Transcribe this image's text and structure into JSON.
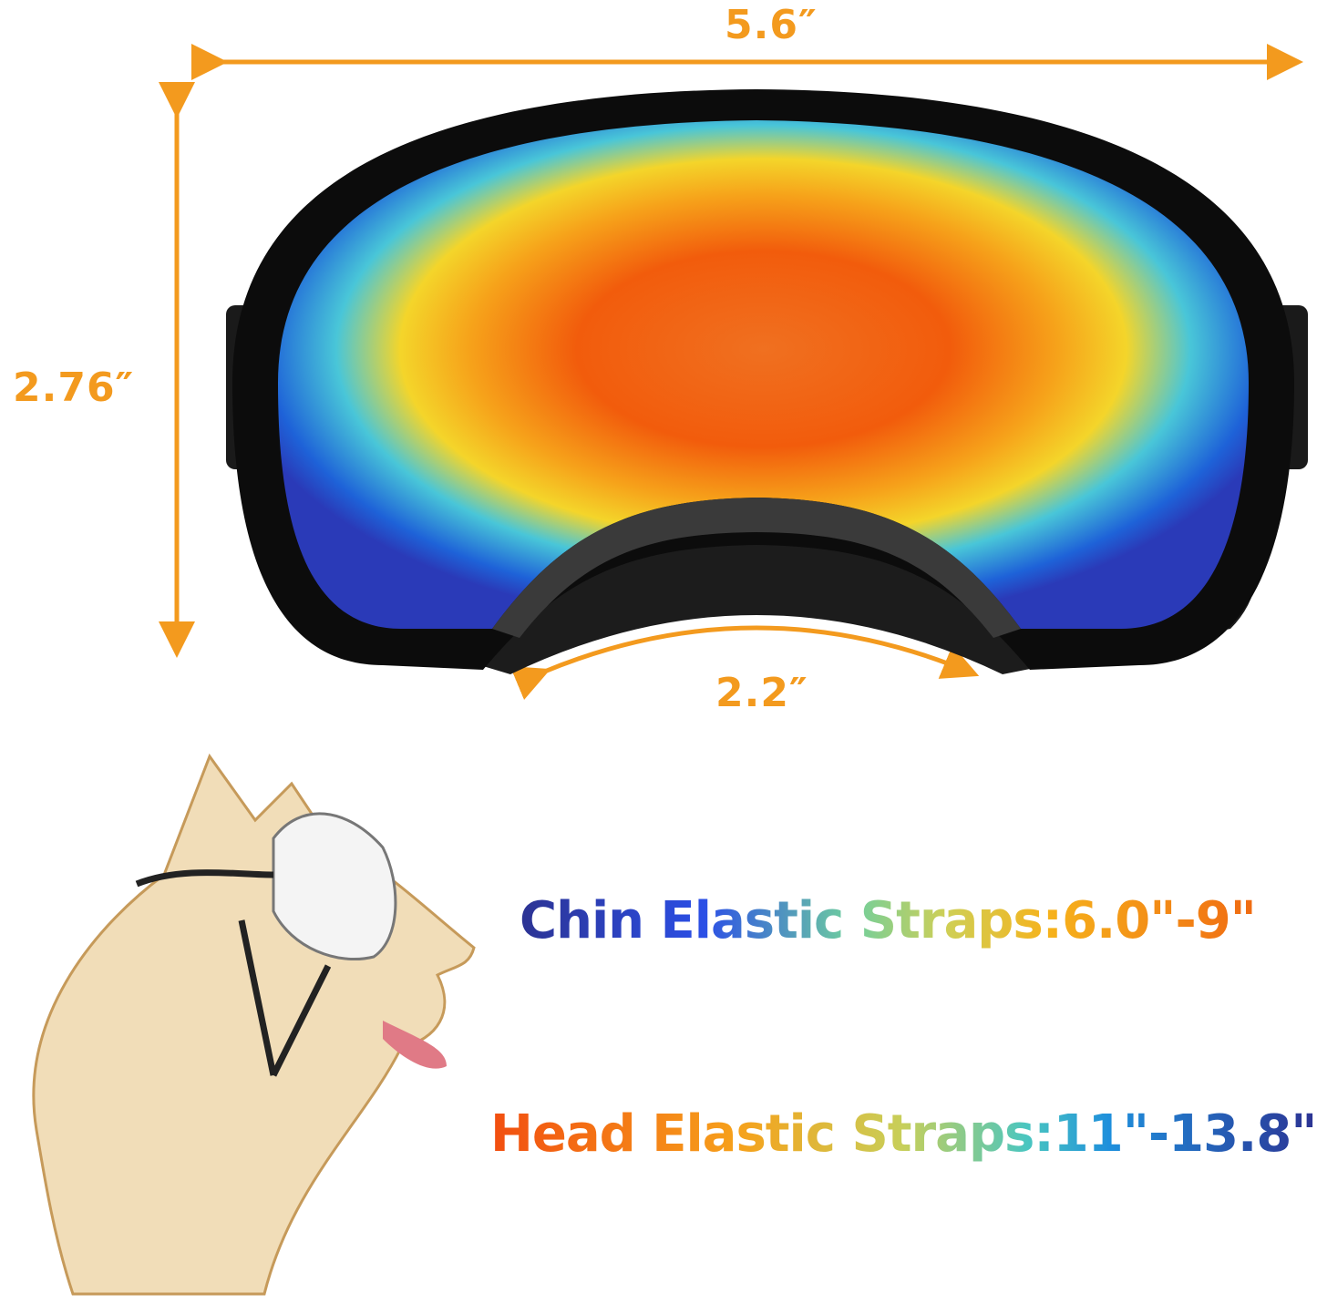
{
  "dimensions": {
    "width": "5.6″",
    "height": "2.76″",
    "nose_bridge": "2.2″"
  },
  "straps": {
    "chin": "Chin Elastic Straps:6.0\"-9\"",
    "head": "Head Elastic Straps:11\"-13.8\""
  },
  "colors": {
    "dimension_accent": "#f39a1e",
    "frame": "#111111",
    "lens_center": "#f2660f"
  }
}
